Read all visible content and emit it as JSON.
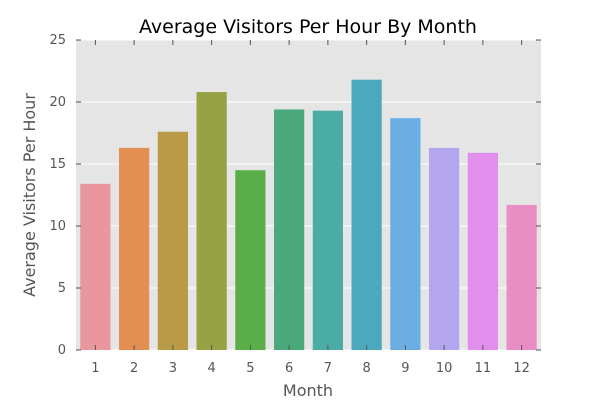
{
  "chart_data": {
    "type": "bar",
    "title": "Average Visitors Per Hour By Month",
    "xlabel": "Month",
    "ylabel": "Average Visitors Per Hour",
    "categories": [
      "1",
      "2",
      "3",
      "4",
      "5",
      "6",
      "7",
      "8",
      "9",
      "10",
      "11",
      "12"
    ],
    "values": [
      13.4,
      16.3,
      17.6,
      20.8,
      14.5,
      19.4,
      19.3,
      21.8,
      18.7,
      16.3,
      15.9,
      11.7
    ],
    "colors": [
      "#e9969f",
      "#e48f52",
      "#b89a47",
      "#96a244",
      "#5aae49",
      "#4aa97b",
      "#4aaca5",
      "#4ca9bd",
      "#6aaee4",
      "#b4a6ee",
      "#e28eec",
      "#e98dc5"
    ],
    "ylim": [
      0,
      25
    ],
    "yticks": [
      0,
      5,
      10,
      15,
      20,
      25
    ],
    "grid": true,
    "background": "#e5e5e5",
    "gridline_color": "#ffffff"
  }
}
